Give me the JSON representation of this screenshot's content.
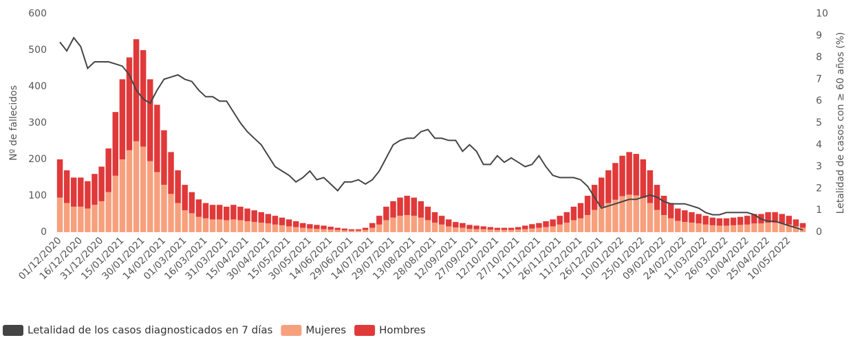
{
  "chart_data": {
    "type": "bar-line",
    "y_label": "Nº de fallecidos",
    "y2_label": "Letalidad de casos con ≥ 60 años (%)",
    "ylim": [
      0,
      600
    ],
    "yticks": [
      0,
      100,
      200,
      300,
      400,
      500,
      600
    ],
    "y2lim": [
      0,
      10
    ],
    "y2ticks": [
      0,
      1,
      2,
      3,
      4,
      5,
      6,
      7,
      8,
      9,
      10
    ],
    "stacked": true,
    "grid": false,
    "legend": "bottom-left",
    "x": [
      "01/12/2020",
      null,
      null,
      "16/12/2020",
      null,
      null,
      "31/12/2020",
      null,
      null,
      "15/01/2021",
      null,
      null,
      "30/01/2021",
      null,
      null,
      "14/02/2021",
      null,
      null,
      "01/03/2021",
      null,
      null,
      "16/03/2021",
      null,
      null,
      "31/03/2021",
      null,
      null,
      "15/04/2021",
      null,
      null,
      "30/04/2021",
      null,
      null,
      "15/05/2021",
      null,
      null,
      "30/05/2021",
      null,
      null,
      "14/06/2021",
      null,
      null,
      "29/06/2021",
      null,
      null,
      "14/07/2021",
      null,
      null,
      "29/07/2021",
      null,
      null,
      "13/08/2021",
      null,
      null,
      "28/08/2021",
      null,
      null,
      "12/09/2021",
      null,
      null,
      "27/09/2021",
      null,
      null,
      "12/10/2021",
      null,
      null,
      "27/10/2021",
      null,
      null,
      "11/11/2021",
      null,
      null,
      "26/11/2021",
      null,
      null,
      "11/12/2021",
      null,
      null,
      "26/12/2021",
      null,
      null,
      "10/01/2022",
      null,
      null,
      "25/01/2022",
      null,
      null,
      "09/02/2022",
      null,
      null,
      "24/02/2022",
      null,
      null,
      "11/03/2022",
      null,
      null,
      "26/03/2022",
      null,
      null,
      "10/04/2022",
      null,
      null,
      "25/04/2022",
      null,
      null,
      "10/05/2022",
      null,
      null
    ],
    "series": [
      {
        "name": "Letalidad de los casos diagnosticados en 7 días",
        "kind": "line",
        "axis": "y2",
        "color": "#444444",
        "values": [
          8.7,
          8.3,
          8.9,
          8.5,
          7.5,
          7.8,
          7.8,
          7.8,
          7.7,
          7.6,
          7.2,
          6.5,
          6.1,
          5.9,
          6.5,
          7.0,
          7.1,
          7.2,
          7.0,
          6.9,
          6.5,
          6.2,
          6.2,
          6.0,
          6.0,
          5.5,
          5.0,
          4.6,
          4.3,
          4.0,
          3.5,
          3.0,
          2.8,
          2.6,
          2.3,
          2.5,
          2.8,
          2.4,
          2.5,
          2.2,
          1.9,
          2.3,
          2.3,
          2.4,
          2.2,
          2.4,
          2.8,
          3.4,
          4.0,
          4.2,
          4.3,
          4.3,
          4.6,
          4.7,
          4.3,
          4.3,
          4.2,
          4.2,
          3.7,
          4.0,
          3.7,
          3.1,
          3.1,
          3.5,
          3.2,
          3.4,
          3.2,
          3.0,
          3.1,
          3.5,
          3.0,
          2.6,
          2.5,
          2.5,
          2.5,
          2.4,
          2.1,
          1.6,
          1.1,
          1.2,
          1.3,
          1.4,
          1.5,
          1.5,
          1.6,
          1.7,
          1.6,
          1.4,
          1.3,
          1.3,
          1.3,
          1.2,
          1.1,
          0.9,
          0.8,
          0.8,
          0.9,
          0.9,
          0.9,
          0.9,
          0.8,
          0.6,
          0.5,
          0.5,
          0.4,
          0.3,
          0.2,
          0.1
        ]
      },
      {
        "name": "Mujeres",
        "kind": "bar",
        "color": "#f7a07e",
        "values": [
          95,
          80,
          70,
          70,
          65,
          75,
          85,
          110,
          155,
          200,
          225,
          250,
          235,
          195,
          165,
          130,
          105,
          80,
          60,
          52,
          42,
          38,
          35,
          35,
          33,
          35,
          33,
          30,
          28,
          26,
          24,
          21,
          19,
          16,
          14,
          12,
          10,
          9,
          8,
          7,
          6,
          5,
          4,
          4,
          6,
          12,
          21,
          33,
          40,
          45,
          47,
          45,
          40,
          33,
          26,
          21,
          16,
          13,
          12,
          9,
          8,
          8,
          7,
          6,
          6,
          6,
          7,
          8,
          10,
          12,
          14,
          16,
          21,
          26,
          33,
          38,
          47,
          61,
          70,
          80,
          89,
          99,
          103,
          101,
          94,
          80,
          61,
          47,
          38,
          31,
          28,
          26,
          24,
          21,
          19,
          18,
          18,
          19,
          20,
          21,
          24,
          24,
          26,
          26,
          24,
          21,
          16,
          12
        ]
      },
      {
        "name": "Hombres",
        "kind": "bar",
        "color": "#e0393a",
        "values": [
          105,
          90,
          80,
          80,
          75,
          85,
          95,
          120,
          175,
          220,
          255,
          280,
          265,
          225,
          185,
          150,
          115,
          90,
          70,
          58,
          48,
          42,
          40,
          40,
          37,
          40,
          37,
          35,
          32,
          29,
          26,
          24,
          21,
          19,
          16,
          13,
          12,
          11,
          10,
          8,
          6,
          5,
          4,
          4,
          6,
          13,
          24,
          37,
          45,
          50,
          53,
          50,
          45,
          37,
          29,
          24,
          19,
          15,
          13,
          11,
          10,
          8,
          7,
          6,
          6,
          6,
          7,
          10,
          12,
          13,
          16,
          19,
          24,
          29,
          37,
          42,
          53,
          69,
          80,
          90,
          101,
          111,
          117,
          114,
          106,
          90,
          69,
          53,
          42,
          34,
          32,
          29,
          26,
          24,
          21,
          20,
          20,
          21,
          22,
          24,
          26,
          26,
          29,
          29,
          26,
          24,
          19,
          13
        ]
      }
    ]
  }
}
